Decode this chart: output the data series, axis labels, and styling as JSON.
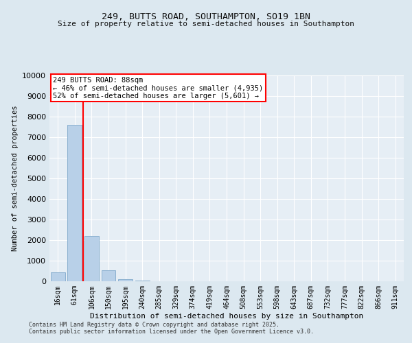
{
  "title_line1": "249, BUTTS ROAD, SOUTHAMPTON, SO19 1BN",
  "title_line2": "Size of property relative to semi-detached houses in Southampton",
  "xlabel": "Distribution of semi-detached houses by size in Southampton",
  "ylabel": "Number of semi-detached properties",
  "categories": [
    "16sqm",
    "61sqm",
    "106sqm",
    "150sqm",
    "195sqm",
    "240sqm",
    "285sqm",
    "329sqm",
    "374sqm",
    "419sqm",
    "464sqm",
    "508sqm",
    "553sqm",
    "598sqm",
    "643sqm",
    "687sqm",
    "732sqm",
    "777sqm",
    "822sqm",
    "866sqm",
    "911sqm"
  ],
  "bar_values": [
    430,
    7600,
    2200,
    550,
    100,
    50,
    10,
    5,
    0,
    0,
    0,
    0,
    0,
    0,
    0,
    0,
    0,
    0,
    0,
    0,
    0
  ],
  "bar_color": "#b8d0e8",
  "bar_edge_color": "#8ab0d0",
  "ylim": [
    0,
    10000
  ],
  "yticks": [
    0,
    1000,
    2000,
    3000,
    4000,
    5000,
    6000,
    7000,
    8000,
    9000,
    10000
  ],
  "red_line_x": 1.5,
  "annotation_title": "249 BUTTS ROAD: 88sqm",
  "annotation_line1": "← 46% of semi-detached houses are smaller (4,935)",
  "annotation_line2": "52% of semi-detached houses are larger (5,601) →",
  "background_color": "#dce8f0",
  "plot_bg_color": "#e6eef5",
  "footer_line1": "Contains HM Land Registry data © Crown copyright and database right 2025.",
  "footer_line2": "Contains public sector information licensed under the Open Government Licence v3.0.",
  "grid_color": "#ffffff"
}
